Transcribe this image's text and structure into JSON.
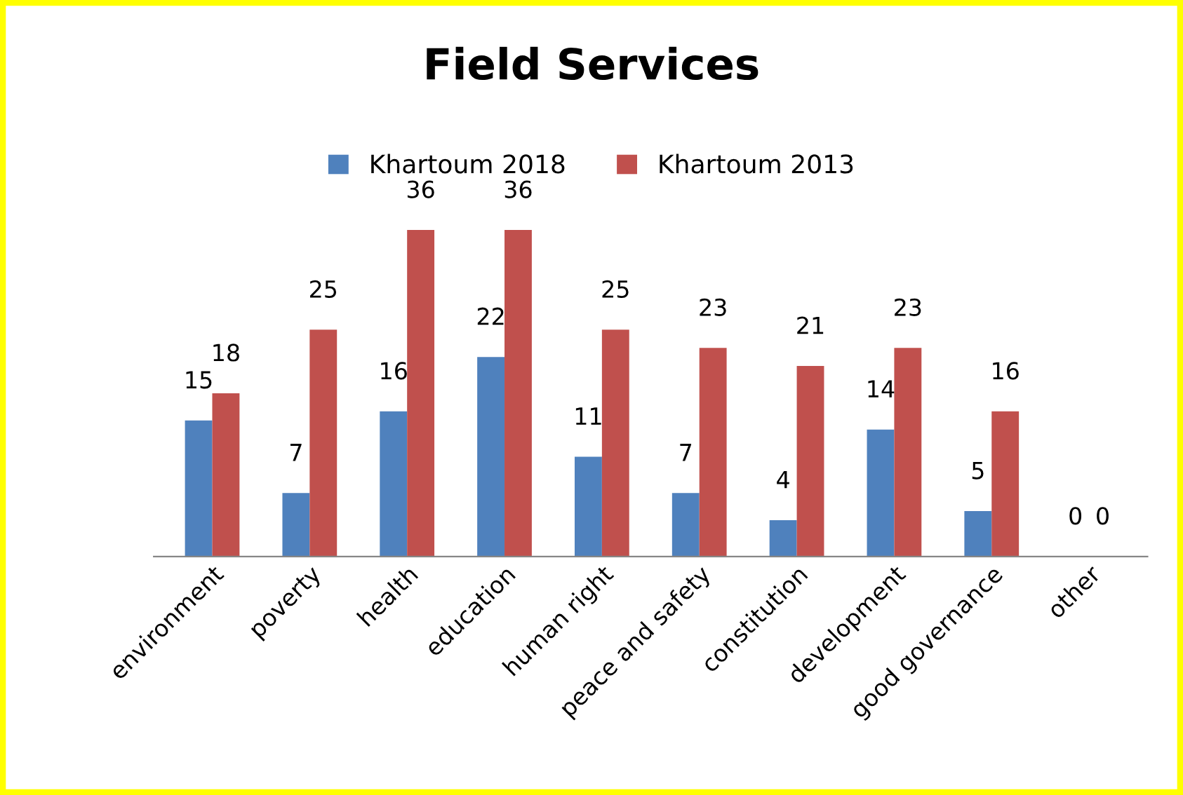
{
  "chart_data": {
    "type": "bar",
    "title": "Field Services",
    "categories": [
      "environment",
      "poverty",
      "health",
      "education",
      "human right",
      "peace and safety",
      "constitution",
      "development",
      "good governance",
      "other"
    ],
    "series": [
      {
        "name": "Khartoum 2018",
        "color": "#4f81bd",
        "values": [
          15,
          7,
          16,
          22,
          11,
          7,
          4,
          14,
          5,
          0
        ]
      },
      {
        "name": "Khartoum 2013",
        "color": "#c0504d",
        "values": [
          18,
          25,
          36,
          36,
          25,
          23,
          21,
          23,
          16,
          0
        ]
      }
    ],
    "data_labels": true,
    "legend": "top",
    "tick_labels": "x"
  }
}
